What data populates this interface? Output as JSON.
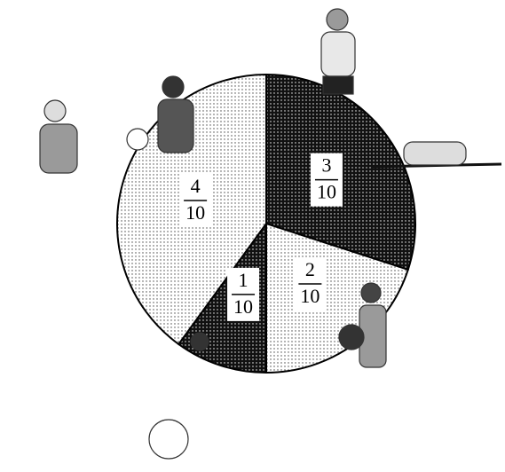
{
  "chart_data": {
    "type": "pie",
    "values": [
      0.3,
      0.2,
      0.1,
      0.4
    ],
    "value_labels": [
      [
        "3",
        "10"
      ],
      [
        "2",
        "10"
      ],
      [
        "1",
        "10"
      ],
      [
        "4",
        "10"
      ]
    ],
    "colors": [
      "#111111",
      "#ffffff",
      "#111111",
      "#ffffff"
    ],
    "start_angle": 0,
    "direction": "clockwise"
  }
}
